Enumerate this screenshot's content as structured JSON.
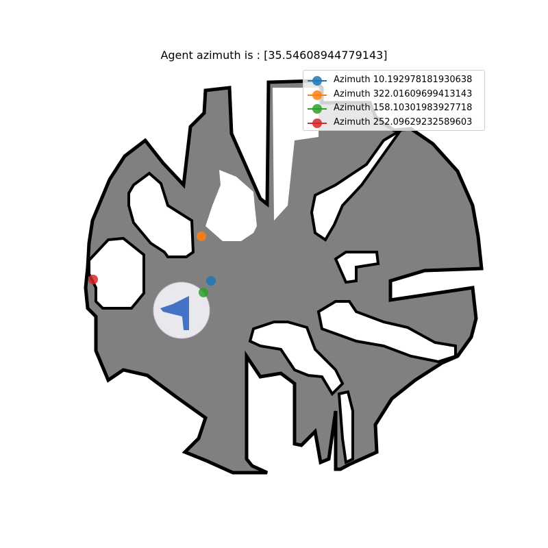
{
  "title": "Agent azimuth is : [35.54608944779143]",
  "colors": {
    "floor": "#808080",
    "wall": "#000000",
    "free": "#ffffff",
    "view_cone": "#e8e8ee",
    "agent": "#4472c4"
  },
  "agent": {
    "azimuth": 35.54608944779143,
    "icon": "agent-arrow-icon"
  },
  "chart_data": {
    "type": "scatter",
    "title": "Agent azimuth is : [35.54608944779143]",
    "xlabel": "",
    "ylabel": "",
    "grid": false,
    "legend_position": "top-right",
    "series": [
      {
        "name": "Azimuth 10.192978181930638",
        "color": "#1f77b4",
        "azimuth": 10.192978181930638
      },
      {
        "name": "Azimuth 322.01609699413143",
        "color": "#ff7f0e",
        "azimuth": 322.01609699413143
      },
      {
        "name": "Azimuth 158.10301983927718",
        "color": "#2ca02c",
        "azimuth": 158.10301983927718
      },
      {
        "name": "Azimuth 252.09629232589603",
        "color": "#d62728",
        "azimuth": 252.09629232589603
      }
    ]
  }
}
